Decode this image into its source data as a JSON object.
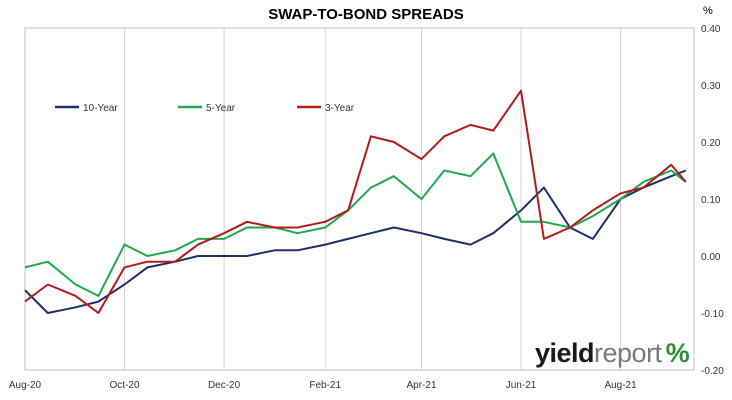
{
  "brand": {
    "part1": "yield",
    "part2": "report",
    "symbol": "%"
  },
  "chart_data": {
    "type": "line",
    "title": "SWAP-TO-BOND SPREADS",
    "unit_label": "%",
    "xlabel": "",
    "ylabel": "",
    "ylim": [
      -0.2,
      0.4
    ],
    "y_ticks": [
      "0.40",
      "0.30",
      "0.20",
      "0.10",
      "0.00",
      "-0.10",
      "-0.20"
    ],
    "x_ticks": [
      "Aug-20",
      "Oct-20",
      "Dec-20",
      "Feb-21",
      "Apr-21",
      "Jun-21",
      "Aug-21"
    ],
    "x_range": [
      "2020-08-01",
      "2021-09-15"
    ],
    "grid": true,
    "legend_position": "top-left",
    "series": [
      {
        "name": "10-Year",
        "color": "#1f2f6b",
        "x": [
          "2020-08-01",
          "2020-08-15",
          "2020-09-01",
          "2020-09-15",
          "2020-10-01",
          "2020-10-15",
          "2020-11-01",
          "2020-11-15",
          "2020-12-01",
          "2020-12-15",
          "2021-01-01",
          "2021-01-15",
          "2021-02-01",
          "2021-02-15",
          "2021-03-01",
          "2021-03-15",
          "2021-04-01",
          "2021-04-15",
          "2021-05-01",
          "2021-05-15",
          "2021-06-01",
          "2021-06-15",
          "2021-07-01",
          "2021-07-15",
          "2021-08-01",
          "2021-08-15",
          "2021-09-01",
          "2021-09-10"
        ],
        "values": [
          -0.06,
          -0.1,
          -0.09,
          -0.08,
          -0.05,
          -0.02,
          -0.01,
          0.0,
          0.0,
          0.0,
          0.01,
          0.01,
          0.02,
          0.03,
          0.04,
          0.05,
          0.04,
          0.03,
          0.02,
          0.04,
          0.08,
          0.12,
          0.05,
          0.03,
          0.1,
          0.12,
          0.14,
          0.15
        ]
      },
      {
        "name": "5-Year",
        "color": "#1fa84f",
        "x": [
          "2020-08-01",
          "2020-08-15",
          "2020-09-01",
          "2020-09-15",
          "2020-10-01",
          "2020-10-15",
          "2020-11-01",
          "2020-11-15",
          "2020-12-01",
          "2020-12-15",
          "2021-01-01",
          "2021-01-15",
          "2021-02-01",
          "2021-02-15",
          "2021-03-01",
          "2021-03-15",
          "2021-04-01",
          "2021-04-15",
          "2021-05-01",
          "2021-05-15",
          "2021-06-01",
          "2021-06-15",
          "2021-07-01",
          "2021-07-15",
          "2021-08-01",
          "2021-08-15",
          "2021-09-01",
          "2021-09-10"
        ],
        "values": [
          -0.02,
          -0.01,
          -0.05,
          -0.07,
          0.02,
          0.0,
          0.01,
          0.03,
          0.03,
          0.05,
          0.05,
          0.04,
          0.05,
          0.08,
          0.12,
          0.14,
          0.1,
          0.15,
          0.14,
          0.18,
          0.06,
          0.06,
          0.05,
          0.07,
          0.1,
          0.13,
          0.15,
          0.13
        ]
      },
      {
        "name": "3-Year",
        "color": "#b31b1b",
        "x": [
          "2020-08-01",
          "2020-08-15",
          "2020-09-01",
          "2020-09-15",
          "2020-10-01",
          "2020-10-15",
          "2020-11-01",
          "2020-11-15",
          "2020-12-01",
          "2020-12-15",
          "2021-01-01",
          "2021-01-15",
          "2021-02-01",
          "2021-02-15",
          "2021-03-01",
          "2021-03-15",
          "2021-04-01",
          "2021-04-15",
          "2021-05-01",
          "2021-05-15",
          "2021-06-01",
          "2021-06-15",
          "2021-07-01",
          "2021-07-15",
          "2021-08-01",
          "2021-08-15",
          "2021-09-01",
          "2021-09-10"
        ],
        "values": [
          -0.08,
          -0.05,
          -0.07,
          -0.1,
          -0.02,
          -0.01,
          -0.01,
          0.02,
          0.04,
          0.06,
          0.05,
          0.05,
          0.06,
          0.08,
          0.21,
          0.2,
          0.17,
          0.21,
          0.23,
          0.22,
          0.29,
          0.03,
          0.05,
          0.08,
          0.11,
          0.12,
          0.16,
          0.13
        ]
      }
    ]
  }
}
